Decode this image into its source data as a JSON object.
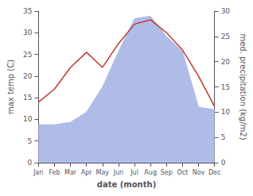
{
  "chart_data": {
    "type": "line",
    "xlabel": "date (month)",
    "ylabel": "max temp (C)",
    "y2label": "med. precipitation (kg/m2)",
    "categories": [
      "Jan",
      "Feb",
      "Mar",
      "Apr",
      "May",
      "Jun",
      "Jul",
      "Aug",
      "Sep",
      "Oct",
      "Nov",
      "Dec"
    ],
    "series": [
      {
        "type": "area",
        "color": "#b0bce8",
        "axis": "y2",
        "values": [
          7.5,
          7.5,
          8.0,
          10.0,
          15.0,
          22.0,
          28.5,
          29.0,
          25.0,
          22.0,
          11.0,
          10.5
        ]
      },
      {
        "type": "line",
        "color": "#c0392b",
        "values": [
          14.0,
          17.0,
          22.0,
          25.5,
          22.0,
          27.5,
          32.0,
          33.0,
          30.0,
          26.0,
          20.0,
          13.0
        ]
      }
    ],
    "ylim": [
      0,
      35
    ],
    "yticks": [
      0,
      5,
      10,
      15,
      20,
      25,
      30,
      35
    ],
    "y2lim": [
      0,
      30
    ],
    "y2ticks": [
      0,
      5,
      10,
      15,
      20,
      25,
      30
    ],
    "grid": false
  }
}
